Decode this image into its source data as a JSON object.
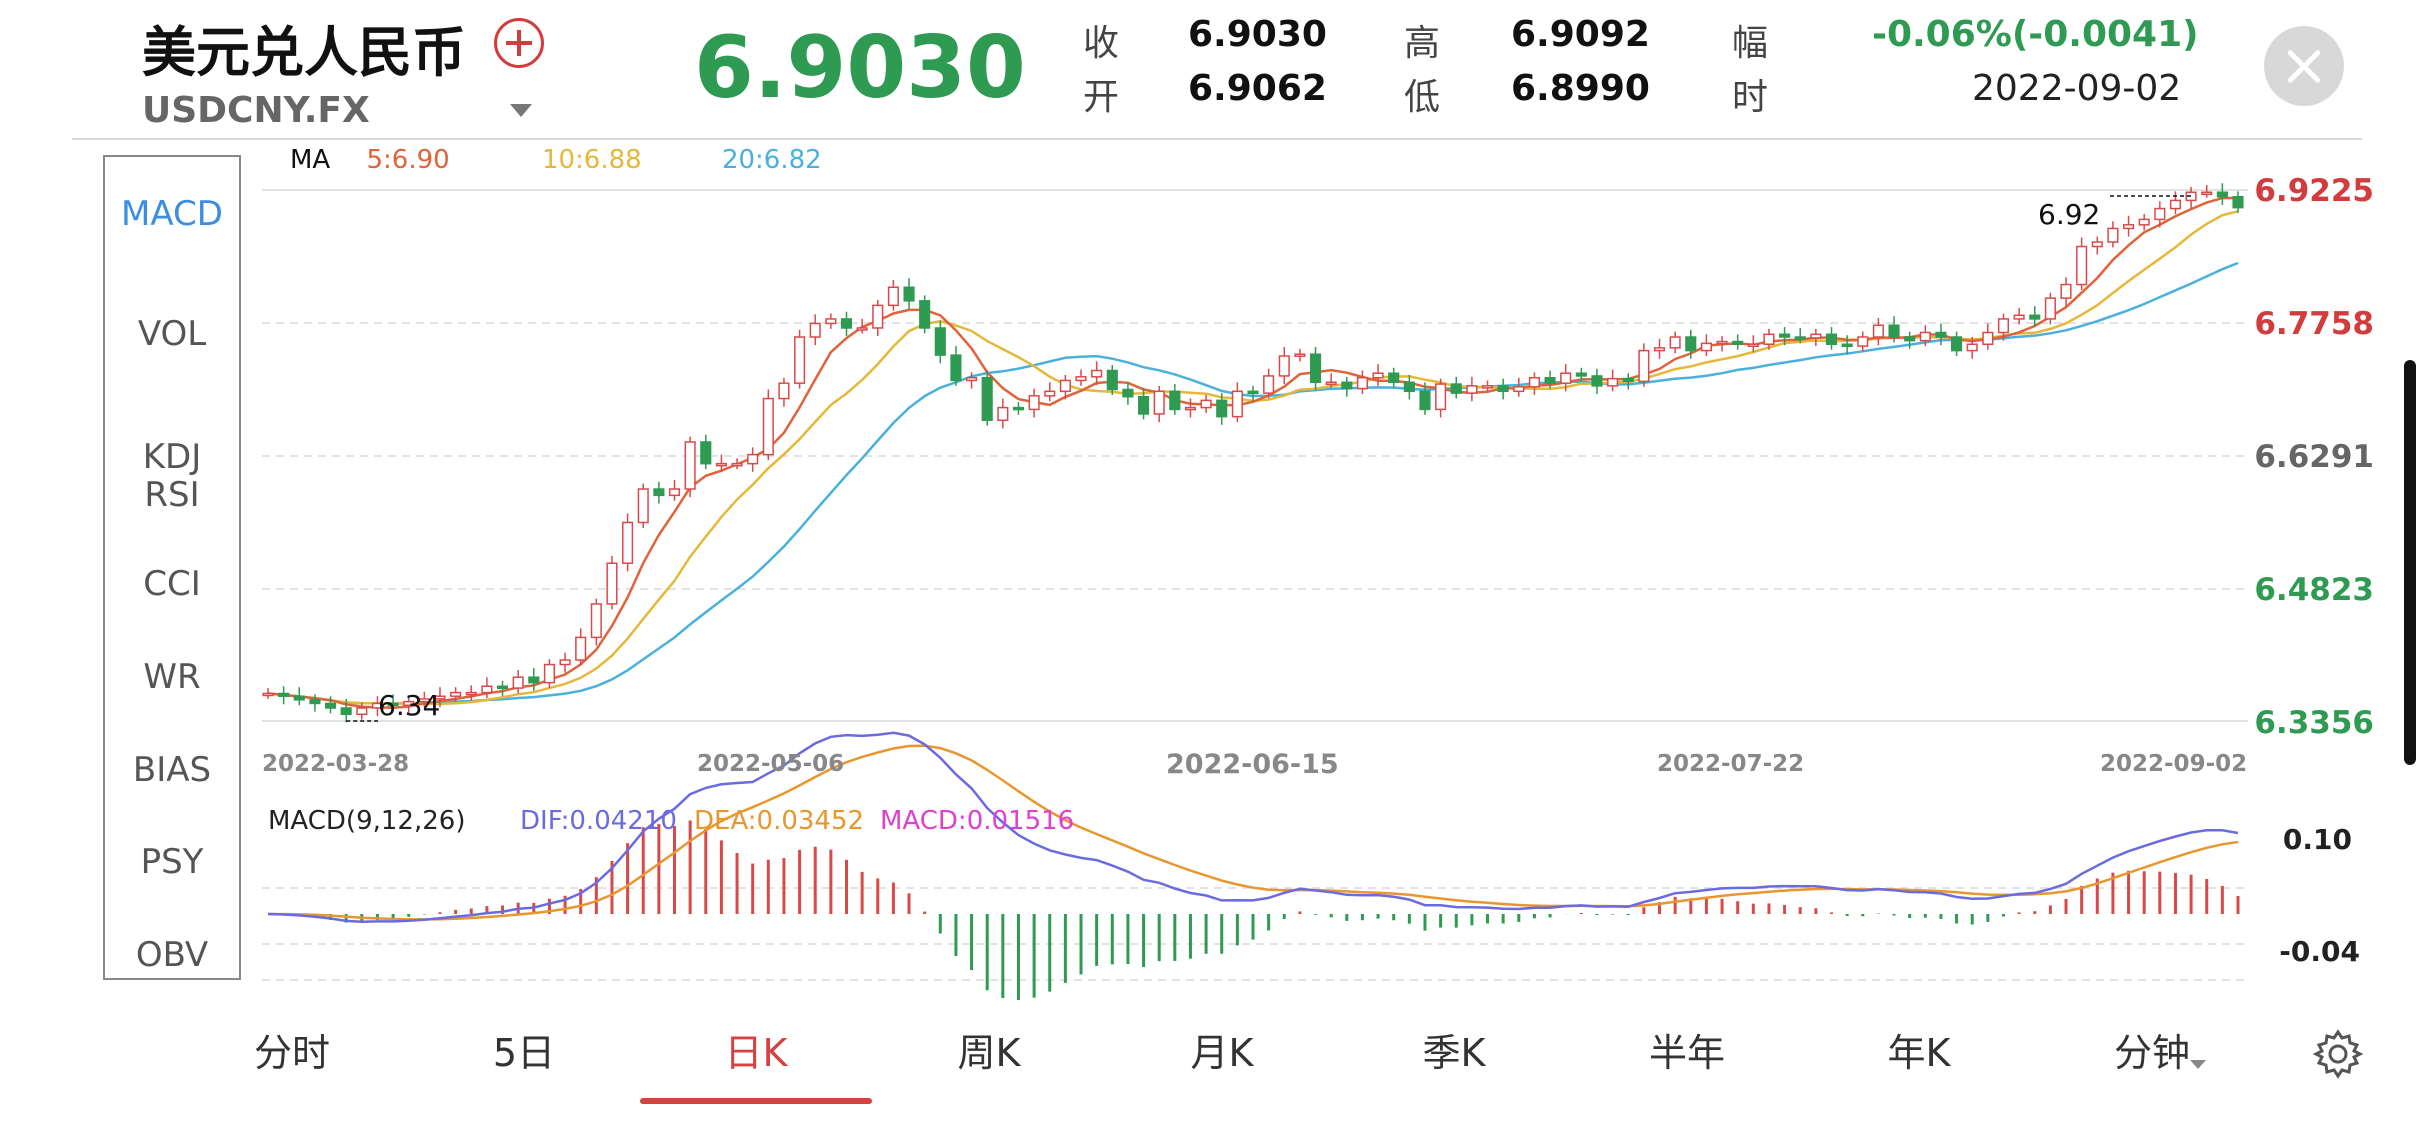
{
  "header": {
    "title": "美元兑人民币",
    "symbol": "USDCNY.FX",
    "price": "6.9030",
    "price_color": "#2e9a52",
    "quotes": {
      "close_label": "收",
      "close_value": "6.9030",
      "high_label": "高",
      "high_value": "6.9092",
      "change_label": "幅",
      "change_value": "-0.06%(-0.0041)",
      "open_label": "开",
      "open_value": "6.9062",
      "low_label": "低",
      "low_value": "6.8990",
      "time_label": "时",
      "time_value": "2022-09-02"
    }
  },
  "indicators": [
    "MACD",
    "VOL",
    "KDJ",
    "RSI",
    "CCI",
    "WR",
    "BIAS",
    "PSY",
    "OBV"
  ],
  "indicator_active": "MACD",
  "ma_legend": {
    "label": "MA",
    "ma5": "5:6.90",
    "ma10": "10:6.88",
    "ma20": "20:6.82",
    "ma5_color": "#e0633a",
    "ma10_color": "#e6b83a",
    "ma20_color": "#4ab0dc"
  },
  "main_chart": {
    "y_ticks": [
      "6.9225",
      "6.7758",
      "6.6291",
      "6.4823",
      "6.3356"
    ],
    "x_ticks": [
      "2022-03-28",
      "2022-05-06",
      "2022-06-15",
      "2022-07-22",
      "2022-09-02"
    ],
    "high_annotation": "6.92",
    "low_annotation": "6.34",
    "up_color": "#d84a4a",
    "down_color": "#2e9a52"
  },
  "macd_chart": {
    "title": "MACD(9,12,26)",
    "dif": "DIF:0.04210",
    "dea": "DEA:0.03452",
    "macd": "MACD:0.01516",
    "dif_color": "#6b6be0",
    "dea_color": "#e8962e",
    "macd_color": "#e040d0",
    "y_ticks": [
      "0.10",
      "-0.04"
    ]
  },
  "tabs": [
    "分时",
    "5日",
    "日K",
    "周K",
    "月K",
    "季K",
    "半年",
    "年K",
    "分钟"
  ],
  "active_tab": "日K",
  "chart_data": {
    "type": "candlestick",
    "title": "",
    "candles_close": [
      6.366,
      6.363,
      6.359,
      6.355,
      6.35,
      6.343,
      6.35,
      6.355,
      6.353,
      6.357,
      6.36,
      6.363,
      6.367,
      6.367,
      6.374,
      6.372,
      6.384,
      6.378,
      6.398,
      6.403,
      6.428,
      6.465,
      6.51,
      6.555,
      6.592,
      6.585,
      6.592,
      6.644,
      6.62,
      6.62,
      6.62,
      6.63,
      6.692,
      6.709,
      6.76,
      6.775,
      6.78,
      6.77,
      6.77,
      6.795,
      6.815,
      6.8,
      6.77,
      6.74,
      6.712,
      6.715,
      6.668,
      6.682,
      6.68,
      6.695,
      6.7,
      6.712,
      6.716,
      6.723,
      6.702,
      6.694,
      6.675,
      6.7,
      6.68,
      6.682,
      6.69,
      6.672,
      6.7,
      6.698,
      6.717,
      6.739,
      6.741,
      6.71,
      6.71,
      6.703,
      6.715,
      6.72,
      6.71,
      6.7,
      6.68,
      6.708,
      6.698,
      6.706,
      6.706,
      6.7,
      6.705,
      6.715,
      6.709,
      6.72,
      6.717,
      6.706,
      6.714,
      6.711,
      6.745,
      6.748,
      6.76,
      6.745,
      6.753,
      6.755,
      6.752,
      6.752,
      6.763,
      6.76,
      6.759,
      6.763,
      6.752,
      6.75,
      6.76,
      6.773,
      6.76,
      6.756,
      6.765,
      6.76,
      6.745,
      6.752,
      6.765,
      6.78,
      6.784,
      6.78,
      6.803,
      6.818,
      6.86,
      6.865,
      6.88,
      6.884,
      6.89,
      6.902,
      6.911,
      6.92,
      6.92,
      6.915,
      6.903
    ],
    "ma5": {
      "last": 6.9
    },
    "ma10": {
      "last": 6.88
    },
    "ma20": {
      "last": 6.82
    },
    "ylim": [
      6.3356,
      6.9225
    ],
    "xlabel": "",
    "ylabel": ""
  }
}
